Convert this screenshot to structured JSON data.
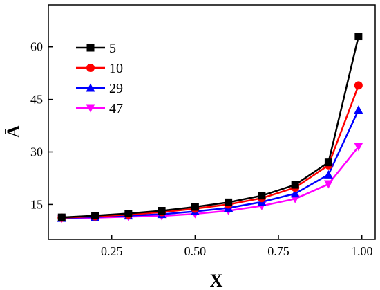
{
  "chart_data": {
    "type": "line",
    "xlabel": "X",
    "ylabel": "Ā",
    "xlim": [
      0.06,
      1.04
    ],
    "ylim": [
      5,
      72
    ],
    "xticks": [
      0.25,
      0.5,
      0.75,
      1.0
    ],
    "xtick_labels": [
      "0.25",
      "0.50",
      "0.75",
      "1.00"
    ],
    "yticks": [
      15,
      30,
      45,
      60
    ],
    "ytick_labels": [
      "15",
      "30",
      "45",
      "60"
    ],
    "x": [
      0.1,
      0.2,
      0.3,
      0.4,
      0.5,
      0.6,
      0.7,
      0.8,
      0.9,
      0.99
    ],
    "legend_position": "top-left",
    "grid": false,
    "series": [
      {
        "name": "5",
        "color": "#000000",
        "marker": "square",
        "values": [
          11.3,
          11.8,
          12.4,
          13.2,
          14.3,
          15.6,
          17.5,
          20.6,
          27.0,
          63.0
        ]
      },
      {
        "name": "10",
        "color": "#ff0000",
        "marker": "circle",
        "values": [
          11.2,
          11.6,
          12.1,
          12.8,
          13.8,
          15.0,
          16.8,
          19.8,
          26.2,
          49.0
        ]
      },
      {
        "name": "29",
        "color": "#0000ff",
        "marker": "triangle-up",
        "values": [
          11.1,
          11.4,
          11.8,
          12.2,
          13.0,
          14.0,
          15.7,
          18.1,
          23.5,
          42.0
        ]
      },
      {
        "name": "47",
        "color": "#ff00ff",
        "marker": "triangle-down",
        "values": [
          11.0,
          11.2,
          11.5,
          11.7,
          12.3,
          13.2,
          14.6,
          16.6,
          20.8,
          31.5
        ]
      }
    ]
  }
}
